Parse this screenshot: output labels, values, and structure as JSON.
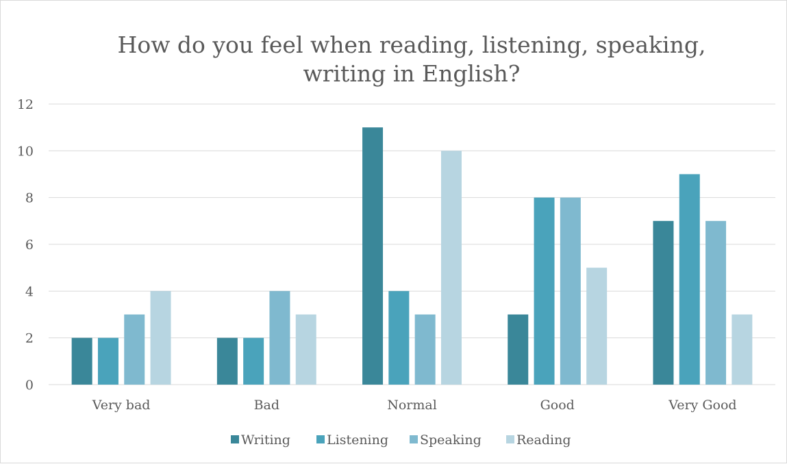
{
  "chart_data": {
    "type": "bar",
    "title": "How do you feel when reading, listening, speaking, writing in English?",
    "title_lines": [
      "How do you feel when reading, listening, speaking,",
      "writing in English?"
    ],
    "xlabel": "",
    "ylabel": "",
    "categories": [
      "Very bad",
      "Bad",
      "Normal",
      "Good",
      "Very Good"
    ],
    "series": [
      {
        "name": "Writing",
        "color": "#3a8799",
        "values": [
          2,
          2,
          11,
          3,
          7
        ]
      },
      {
        "name": "Listening",
        "color": "#4aa3bb",
        "values": [
          2,
          2,
          4,
          8,
          9
        ]
      },
      {
        "name": "Speaking",
        "color": "#7fb9cf",
        "values": [
          3,
          4,
          3,
          8,
          7
        ]
      },
      {
        "name": "Reading",
        "color": "#b7d5e1",
        "values": [
          4,
          3,
          10,
          5,
          3
        ]
      }
    ],
    "ylim": [
      0,
      12
    ],
    "yticks": [
      0,
      2,
      4,
      6,
      8,
      10,
      12
    ],
    "grid": true,
    "legend_position": "bottom"
  }
}
